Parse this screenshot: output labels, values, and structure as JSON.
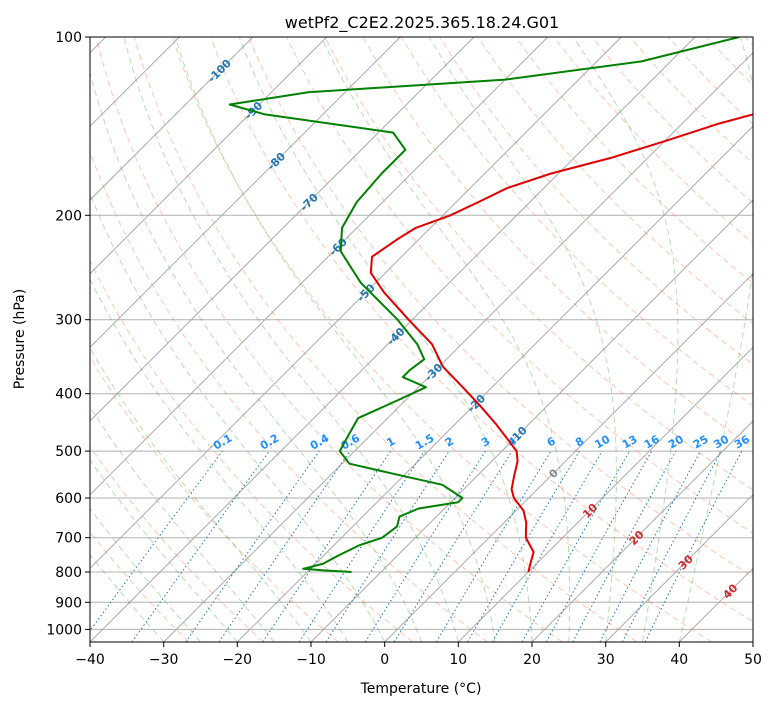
{
  "chart_data": {
    "type": "skew-t",
    "title": "wetPf2_C2E2.2025.365.18.24.G01",
    "xlabel": "Temperature (°C)",
    "ylabel": "Pressure (hPa)",
    "xlim": [
      -40,
      50
    ],
    "ylim": [
      1050,
      100
    ],
    "x_ticks": [
      "−40",
      "−30",
      "−20",
      "−10",
      "0",
      "10",
      "20",
      "30",
      "40",
      "50"
    ],
    "x_tick_values": [
      -40,
      -30,
      -20,
      -10,
      0,
      10,
      20,
      30,
      40,
      50
    ],
    "y_ticks": [
      "100",
      "200",
      "300",
      "400",
      "500",
      "600",
      "700",
      "800",
      "900",
      "1000"
    ],
    "y_tick_values": [
      100,
      200,
      300,
      400,
      500,
      600,
      700,
      800,
      900,
      1000
    ],
    "isotherm_labels": {
      "text": [
        "-100",
        "-90",
        "-80",
        "-70",
        "-60",
        "-50",
        "-40",
        "-30",
        "-20",
        "-10",
        "0",
        "10",
        "20",
        "30",
        "40"
      ],
      "values": [
        -100,
        -90,
        -80,
        -70,
        -60,
        -50,
        -40,
        -30,
        -20,
        -10,
        0,
        10,
        20,
        30,
        40
      ],
      "pressures": [
        114,
        133,
        162,
        190,
        226,
        270,
        320,
        368,
        415,
        470,
        545,
        630,
        700,
        770,
        862
      ]
    },
    "mixing_ratio_labels": {
      "text": [
        "0.1",
        "0.2",
        "0.4",
        "0.6",
        "1",
        "1.5",
        "2",
        "3",
        "4",
        "6",
        "8",
        "10",
        "13",
        "16",
        "20",
        "25",
        "30",
        "36"
      ],
      "values": [
        0.1,
        0.2,
        0.4,
        0.6,
        1,
        1.5,
        2,
        3,
        4,
        6,
        8,
        10,
        13,
        16,
        20,
        25,
        30,
        36
      ]
    },
    "series": [
      {
        "name": "Temperature",
        "color": "#e00000",
        "points": [
          {
            "p": 100,
            "t": -13.0
          },
          {
            "p": 110,
            "t": -16.0
          },
          {
            "p": 120,
            "t": -17.0
          },
          {
            "p": 130,
            "t": -18.0
          },
          {
            "p": 140,
            "t": -25.0
          },
          {
            "p": 150,
            "t": -30.0
          },
          {
            "p": 160,
            "t": -35.0
          },
          {
            "p": 170,
            "t": -41.0
          },
          {
            "p": 180,
            "t": -45.0
          },
          {
            "p": 190,
            "t": -47.0
          },
          {
            "p": 200,
            "t": -49.0
          },
          {
            "p": 210,
            "t": -52.0
          },
          {
            "p": 220,
            "t": -53.0
          },
          {
            "p": 235,
            "t": -54.0
          },
          {
            "p": 250,
            "t": -52.0
          },
          {
            "p": 270,
            "t": -47.5
          },
          {
            "p": 300,
            "t": -40.5
          },
          {
            "p": 330,
            "t": -34.0
          },
          {
            "p": 360,
            "t": -29.5
          },
          {
            "p": 390,
            "t": -24.0
          },
          {
            "p": 420,
            "t": -19.0
          },
          {
            "p": 450,
            "t": -14.5
          },
          {
            "p": 480,
            "t": -10.5
          },
          {
            "p": 500,
            "t": -8.0
          },
          {
            "p": 520,
            "t": -6.5
          },
          {
            "p": 550,
            "t": -5.0
          },
          {
            "p": 580,
            "t": -3.5
          },
          {
            "p": 600,
            "t": -2.0
          },
          {
            "p": 630,
            "t": 1.0
          },
          {
            "p": 660,
            "t": 3.0
          },
          {
            "p": 700,
            "t": 5.0
          },
          {
            "p": 740,
            "t": 8.0
          },
          {
            "p": 770,
            "t": 9.0
          },
          {
            "p": 800,
            "t": 10.0
          }
        ]
      },
      {
        "name": "Dewpoint",
        "color": "#008000",
        "points": [
          {
            "p": 100,
            "t": -34.0
          },
          {
            "p": 110,
            "t": -44.0
          },
          {
            "p": 118,
            "t": -60.0
          },
          {
            "p": 124,
            "t": -85.0
          },
          {
            "p": 130,
            "t": -94.0
          },
          {
            "p": 135,
            "t": -88.0
          },
          {
            "p": 145,
            "t": -68.0
          },
          {
            "p": 155,
            "t": -64.0
          },
          {
            "p": 170,
            "t": -64.0
          },
          {
            "p": 190,
            "t": -63.5
          },
          {
            "p": 210,
            "t": -62.0
          },
          {
            "p": 230,
            "t": -59.0
          },
          {
            "p": 260,
            "t": -52.0
          },
          {
            "p": 300,
            "t": -42.0
          },
          {
            "p": 330,
            "t": -36.0
          },
          {
            "p": 350,
            "t": -33.0
          },
          {
            "p": 365,
            "t": -33.5
          },
          {
            "p": 375,
            "t": -33.5
          },
          {
            "p": 390,
            "t": -29.0
          },
          {
            "p": 410,
            "t": -31.0
          },
          {
            "p": 440,
            "t": -34.0
          },
          {
            "p": 470,
            "t": -33.0
          },
          {
            "p": 500,
            "t": -32.0
          },
          {
            "p": 525,
            "t": -29.0
          },
          {
            "p": 545,
            "t": -22.0
          },
          {
            "p": 570,
            "t": -13.5
          },
          {
            "p": 600,
            "t": -9.0
          },
          {
            "p": 610,
            "t": -9.0
          },
          {
            "p": 625,
            "t": -13.5
          },
          {
            "p": 645,
            "t": -15.0
          },
          {
            "p": 670,
            "t": -14.0
          },
          {
            "p": 700,
            "t": -14.5
          },
          {
            "p": 720,
            "t": -16.5
          },
          {
            "p": 750,
            "t": -18.0
          },
          {
            "p": 775,
            "t": -19.0
          },
          {
            "p": 790,
            "t": -21.0
          },
          {
            "p": 795,
            "t": -18.0
          },
          {
            "p": 800,
            "t": -14.0
          }
        ]
      }
    ]
  }
}
